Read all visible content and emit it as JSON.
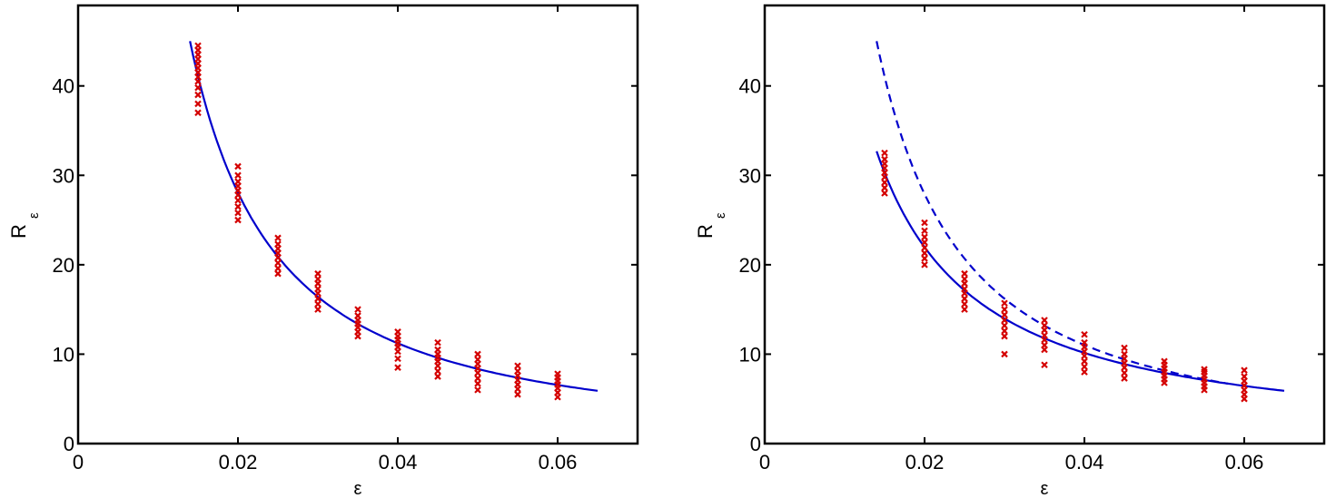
{
  "chart_data": [
    {
      "type": "scatter",
      "xlabel": "ε",
      "ylabel": "R",
      "ylabel_subscript": "ε",
      "xlim": [
        0,
        0.07
      ],
      "ylim": [
        0,
        49
      ],
      "xticks": [
        0,
        0.02,
        0.04,
        0.06
      ],
      "xtick_labels": [
        "0",
        "0.02",
        "0.04",
        "0.06"
      ],
      "yticks": [
        0,
        10,
        20,
        30,
        40
      ],
      "ytick_labels": [
        "0",
        "10",
        "20",
        "30",
        "40"
      ],
      "grid": false,
      "colors": {
        "points": "#d40000",
        "curve": "#0000cc"
      },
      "points": [
        {
          "x": 0.015,
          "y": [
            37,
            38,
            39,
            39.8,
            40.5,
            41,
            41.5,
            42,
            42.5,
            43,
            43.5,
            44,
            44.5
          ]
        },
        {
          "x": 0.02,
          "y": [
            25,
            25.8,
            26.5,
            27.2,
            27.8,
            28.3,
            28.8,
            29.3,
            30,
            31
          ]
        },
        {
          "x": 0.025,
          "y": [
            19,
            19.6,
            20.2,
            20.8,
            21.3,
            21.8,
            22.3,
            23
          ]
        },
        {
          "x": 0.03,
          "y": [
            15,
            15.6,
            16.2,
            16.8,
            17.3,
            17.9,
            18.4,
            19
          ]
        },
        {
          "x": 0.035,
          "y": [
            12,
            12.5,
            13,
            13.4,
            13.8,
            14.3,
            15
          ]
        },
        {
          "x": 0.04,
          "y": [
            8.5,
            9.5,
            10.3,
            10.8,
            11.2,
            11.6,
            12,
            12.5
          ]
        },
        {
          "x": 0.045,
          "y": [
            7.5,
            8.1,
            8.7,
            9.2,
            9.6,
            10,
            10.5,
            11.3
          ]
        },
        {
          "x": 0.05,
          "y": [
            6,
            6.7,
            7.3,
            7.9,
            8.4,
            8.9,
            9.4,
            10
          ]
        },
        {
          "x": 0.055,
          "y": [
            5.5,
            6.1,
            6.6,
            7.1,
            7.6,
            8.1,
            8.7
          ]
        },
        {
          "x": 0.06,
          "y": [
            5.2,
            5.7,
            6.2,
            6.6,
            7,
            7.4,
            7.8
          ]
        }
      ],
      "curves": [
        {
          "style": "solid",
          "x_range": [
            0.014,
            0.065
          ],
          "y_start": 45,
          "y_end": 5.9
        }
      ]
    },
    {
      "type": "scatter",
      "xlabel": "ε",
      "ylabel": "R",
      "ylabel_subscript": "ε",
      "xlim": [
        0,
        0.07
      ],
      "ylim": [
        0,
        49
      ],
      "xticks": [
        0,
        0.02,
        0.04,
        0.06
      ],
      "xtick_labels": [
        "0",
        "0.02",
        "0.04",
        "0.06"
      ],
      "yticks": [
        0,
        10,
        20,
        30,
        40
      ],
      "ytick_labels": [
        "0",
        "10",
        "20",
        "30",
        "40"
      ],
      "grid": false,
      "colors": {
        "points": "#d40000",
        "curve": "#0000cc"
      },
      "points": [
        {
          "x": 0.015,
          "y": [
            28,
            28.6,
            29.2,
            29.8,
            30.3,
            30.8,
            31.3,
            31.8,
            32.5
          ]
        },
        {
          "x": 0.02,
          "y": [
            20,
            20.7,
            21.3,
            21.9,
            22.5,
            23.1,
            23.8,
            24.7
          ]
        },
        {
          "x": 0.025,
          "y": [
            15,
            15.6,
            16.2,
            16.8,
            17.3,
            17.9,
            18.4,
            19
          ]
        },
        {
          "x": 0.03,
          "y": [
            10,
            12,
            12.6,
            13.2,
            13.8,
            14.4,
            15,
            15.7
          ]
        },
        {
          "x": 0.035,
          "y": [
            8.8,
            10.5,
            11,
            11.6,
            12.1,
            12.7,
            13.2,
            13.8
          ]
        },
        {
          "x": 0.04,
          "y": [
            8,
            8.6,
            9.2,
            9.8,
            10.3,
            10.8,
            11.3,
            12.2
          ]
        },
        {
          "x": 0.045,
          "y": [
            7.3,
            7.9,
            8.5,
            9,
            9.5,
            10,
            10.7
          ]
        },
        {
          "x": 0.05,
          "y": [
            6.8,
            7.2,
            7.6,
            8,
            8.4,
            8.8,
            9.2
          ]
        },
        {
          "x": 0.055,
          "y": [
            6,
            6.4,
            6.8,
            7.2,
            7.6,
            8,
            8.3
          ]
        },
        {
          "x": 0.06,
          "y": [
            5,
            5.5,
            6,
            6.5,
            7,
            7.5,
            8.2
          ]
        }
      ],
      "curves": [
        {
          "style": "solid",
          "x_range": [
            0.014,
            0.065
          ],
          "y_start": 32.7,
          "y_end": 5.9
        },
        {
          "style": "dashed",
          "x_range": [
            0.014,
            0.058
          ],
          "y_start": 45,
          "y_end": 6.7
        }
      ]
    }
  ]
}
